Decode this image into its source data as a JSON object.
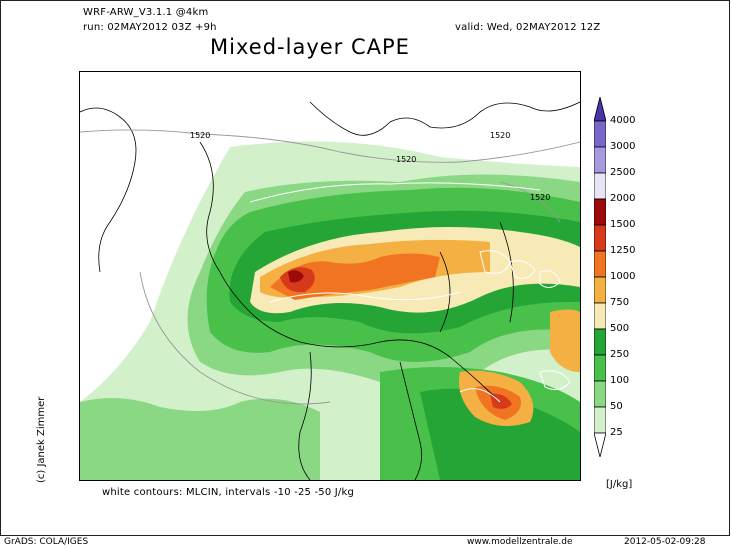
{
  "header": {
    "model": "WRF-ARW_V3.1.1 @4km",
    "run": "run: 02MAY2012 03Z +9h",
    "valid": "valid: Wed, 02MAY2012 12Z"
  },
  "title": "Mixed-layer CAPE",
  "map": {
    "contour_labels": [
      "1520",
      "1520",
      "1520",
      "1520"
    ]
  },
  "credit": "(c) Janek Zimmer",
  "caption": "white contours: MLCIN, intervals -10 -25 -50 J/kg",
  "colorbar": {
    "levels": [
      "4000",
      "3000",
      "2500",
      "2000",
      "1500",
      "1250",
      "1000",
      "750",
      "500",
      "250",
      "100",
      "50",
      "25"
    ],
    "colors": [
      "#4b33a8",
      "#7b66cc",
      "#a99ae0",
      "#e6e4f5",
      "#9d0a0a",
      "#d63a1a",
      "#f07422",
      "#f5b044",
      "#f7eab6",
      "#24a535",
      "#48c04a",
      "#8ad884",
      "#d2f1cb"
    ],
    "unit": "[J/kg]"
  },
  "footer": {
    "left": "GrADS: COLA/IGES",
    "center": "www.modellzentrale.de",
    "right": "2012-05-02-09:28"
  }
}
